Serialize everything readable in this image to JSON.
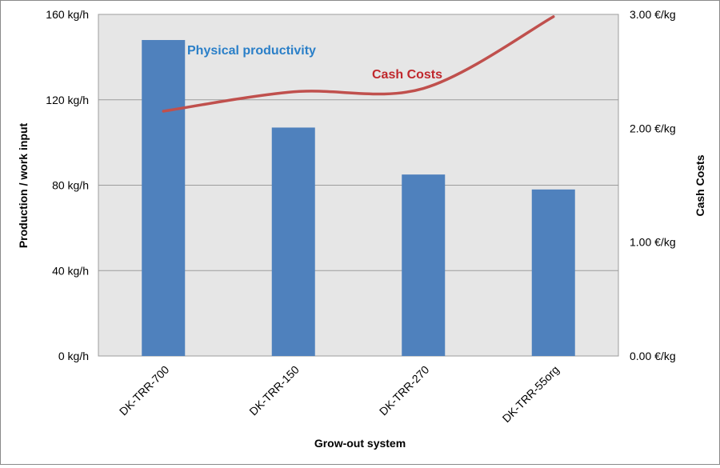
{
  "chart_data": {
    "type": "bar",
    "categories": [
      "DK-TRR-700",
      "DK-TRR-150",
      "DK-TRR-270",
      "DK-TRR-55org"
    ],
    "xlabel": "Grow-out system",
    "ylabel": "Production / work input",
    "y2label": "Cash Costs",
    "ylim": [
      0,
      160
    ],
    "y2lim": [
      0,
      3.0
    ],
    "yticks": [
      "0  kg/h",
      "40  kg/h",
      "80  kg/h",
      "120  kg/h",
      "160  kg/h"
    ],
    "y2ticks": [
      "0.00  €/kg",
      "1.00  €/kg",
      "2.00  €/kg",
      "3.00  €/kg"
    ],
    "series": [
      {
        "name": "Physical productivity",
        "type": "bar",
        "axis": "left",
        "unit": "kg/h",
        "color": "#4f81bd",
        "values": [
          148,
          107,
          85,
          78
        ]
      },
      {
        "name": "Cash Costs",
        "type": "line",
        "axis": "right",
        "unit": "€/kg",
        "color": "#c0504d",
        "values": [
          2.15,
          2.32,
          2.35,
          2.98
        ]
      }
    ],
    "grid": true,
    "plot_background": "#e6e6e6"
  }
}
